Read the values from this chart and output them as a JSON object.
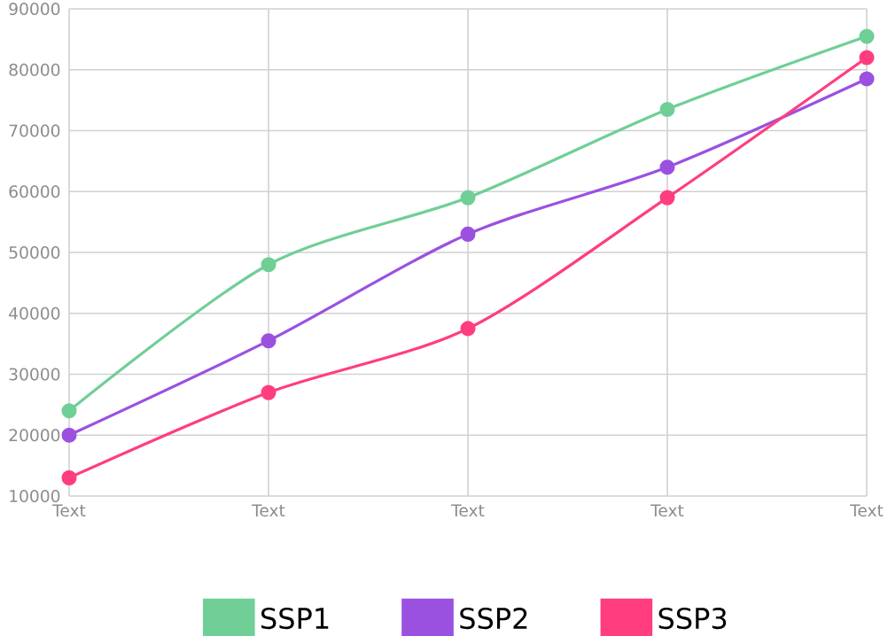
{
  "chart_data": {
    "type": "line",
    "categories": [
      "Text",
      "Text",
      "Text",
      "Text",
      "Text"
    ],
    "series": [
      {
        "name": "SSP1",
        "color": "#6fcf97",
        "values": [
          24000,
          48000,
          59000,
          73500,
          85500
        ]
      },
      {
        "name": "SSP2",
        "color": "#9b51e0",
        "values": [
          20000,
          35500,
          53000,
          64000,
          78500
        ]
      },
      {
        "name": "SSP3",
        "color": "#ff3d7f",
        "values": [
          13000,
          27000,
          37500,
          59000,
          82000
        ]
      }
    ],
    "ylim": [
      10000,
      90000
    ],
    "yticks": [
      10000,
      20000,
      30000,
      40000,
      50000,
      60000,
      70000,
      80000,
      90000
    ],
    "grid": true,
    "legend": "bottom",
    "marker": "circle",
    "line_style": "solid"
  }
}
